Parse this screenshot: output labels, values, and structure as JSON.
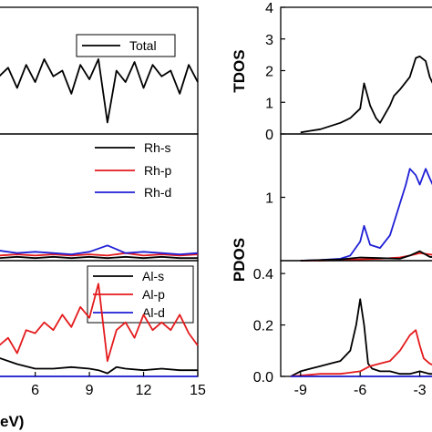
{
  "chart_data": [
    {
      "type": "line",
      "panel": "left-top",
      "xlim": [
        4,
        15
      ],
      "legend_position": "top-right",
      "series": [
        {
          "name": "Total",
          "color": "#000000",
          "x": [
            4,
            4.5,
            5,
            5.5,
            6,
            6.5,
            7,
            7.5,
            8,
            8.5,
            9,
            9.5,
            10,
            10.5,
            11,
            11.5,
            12,
            12.5,
            13,
            13.5,
            14,
            14.5,
            15
          ],
          "y": [
            1.0,
            1.15,
            0.8,
            1.2,
            0.9,
            1.3,
            1.0,
            1.1,
            0.7,
            1.2,
            0.95,
            1.3,
            0.2,
            1.1,
            0.9,
            1.25,
            0.8,
            1.2,
            1.0,
            1.1,
            0.7,
            1.2,
            0.9
          ]
        }
      ]
    },
    {
      "type": "line",
      "panel": "left-middle",
      "xlim": [
        4,
        15
      ],
      "legend_position": "top-right",
      "series": [
        {
          "name": "Rh-s",
          "color": "#000000",
          "x": [
            4,
            5,
            6,
            7,
            8,
            9,
            10,
            11,
            12,
            13,
            14,
            15
          ],
          "y": [
            0.02,
            0.03,
            0.02,
            0.03,
            0.02,
            0.03,
            0.02,
            0.03,
            0.02,
            0.03,
            0.02,
            0.02
          ]
        },
        {
          "name": "Rh-p",
          "color": "#e41a1c",
          "x": [
            4,
            5,
            6,
            7,
            8,
            9,
            10,
            11,
            12,
            13,
            14,
            15
          ],
          "y": [
            0.04,
            0.05,
            0.04,
            0.05,
            0.04,
            0.05,
            0.04,
            0.06,
            0.04,
            0.05,
            0.04,
            0.05
          ]
        },
        {
          "name": "Rh-d",
          "color": "#1f1fd6",
          "x": [
            4,
            5,
            6,
            7,
            8,
            9,
            10,
            11,
            12,
            13,
            14,
            15
          ],
          "y": [
            0.08,
            0.06,
            0.07,
            0.06,
            0.05,
            0.07,
            0.12,
            0.06,
            0.07,
            0.06,
            0.05,
            0.06
          ]
        }
      ]
    },
    {
      "type": "line",
      "panel": "left-bottom",
      "xlim": [
        4,
        15
      ],
      "xticks": [
        6,
        9,
        12,
        15
      ],
      "legend_position": "top-right",
      "series": [
        {
          "name": "Al-s",
          "color": "#000000",
          "x": [
            4,
            5,
            6,
            7,
            8,
            9,
            9.5,
            10,
            10.5,
            11,
            12,
            13,
            14,
            15
          ],
          "y": [
            0.12,
            0.08,
            0.05,
            0.05,
            0.06,
            0.05,
            0.04,
            0.02,
            0.06,
            0.05,
            0.04,
            0.05,
            0.04,
            0.04
          ]
        },
        {
          "name": "Al-p",
          "color": "#e41a1c",
          "x": [
            4,
            4.5,
            5,
            5.5,
            6,
            6.5,
            7,
            7.5,
            8,
            8.5,
            9,
            9.5,
            10,
            10.5,
            11,
            11.5,
            12,
            12.5,
            13,
            13.5,
            14,
            14.5,
            15
          ],
          "y": [
            0.2,
            0.25,
            0.15,
            0.3,
            0.28,
            0.35,
            0.3,
            0.4,
            0.32,
            0.45,
            0.38,
            0.6,
            0.1,
            0.3,
            0.35,
            0.25,
            0.4,
            0.3,
            0.35,
            0.3,
            0.4,
            0.28,
            0.2
          ]
        },
        {
          "name": "Al-d",
          "color": "#1f1fd6",
          "x": [
            4,
            15
          ],
          "y": [
            0.0,
            0.0
          ]
        }
      ]
    },
    {
      "type": "line",
      "panel": "right-top",
      "ylabel": "TDOS",
      "ylim": [
        0,
        4
      ],
      "yticks": [
        0,
        1,
        2,
        3,
        4
      ],
      "xlim": [
        -10,
        -2.2
      ],
      "series": [
        {
          "name": "",
          "color": "#000000",
          "x": [
            -9,
            -8.5,
            -8,
            -7.5,
            -7,
            -6.5,
            -6,
            -5.8,
            -5.5,
            -5.2,
            -5,
            -4.5,
            -4.3,
            -4,
            -3.5,
            -3.2,
            -3,
            -2.7,
            -2.5,
            -2.2
          ],
          "y": [
            0.05,
            0.1,
            0.15,
            0.25,
            0.35,
            0.5,
            0.8,
            1.6,
            0.9,
            0.5,
            0.35,
            0.9,
            1.2,
            1.4,
            1.8,
            2.4,
            2.45,
            2.3,
            1.8,
            1.4
          ]
        }
      ]
    },
    {
      "type": "line",
      "panel": "right-middle",
      "ylabel": "PDOS",
      "yticks": [
        1
      ],
      "xlim": [
        -10,
        -2.2
      ],
      "series": [
        {
          "name": "",
          "color": "#1f1fd6",
          "x": [
            -9,
            -8,
            -7,
            -6.5,
            -6,
            -5.8,
            -5.5,
            -5,
            -4.5,
            -4,
            -3.7,
            -3.5,
            -3.2,
            -3,
            -2.7,
            -2.5,
            -2.2
          ],
          "y": [
            0.0,
            0.01,
            0.03,
            0.08,
            0.3,
            0.55,
            0.25,
            0.2,
            0.4,
            0.9,
            1.2,
            1.45,
            1.35,
            1.2,
            1.45,
            1.3,
            1.1
          ]
        },
        {
          "name": "",
          "color": "#e41a1c",
          "x": [
            -9,
            -8,
            -7,
            -6,
            -5,
            -4,
            -3.5,
            -3,
            -2.5,
            -2.2
          ],
          "y": [
            0.0,
            0.0,
            0.01,
            0.02,
            0.03,
            0.05,
            0.08,
            0.12,
            0.1,
            0.08
          ]
        },
        {
          "name": "",
          "color": "#000000",
          "x": [
            -9,
            -8,
            -7,
            -6,
            -5,
            -4,
            -3.5,
            -3,
            -2.5,
            -2.2
          ],
          "y": [
            0.0,
            0.01,
            0.02,
            0.05,
            0.04,
            0.03,
            0.08,
            0.15,
            0.06,
            0.05
          ]
        }
      ]
    },
    {
      "type": "line",
      "panel": "right-bottom",
      "ylim": [
        0,
        0.45
      ],
      "yticks": [
        0.0,
        0.2,
        0.4
      ],
      "xlim": [
        -10,
        -2.2
      ],
      "xticks": [
        -9,
        -6,
        -3
      ],
      "series": [
        {
          "name": "",
          "color": "#000000",
          "x": [
            -9.5,
            -9,
            -8.5,
            -8,
            -7.5,
            -7,
            -6.5,
            -6.2,
            -6,
            -5.8,
            -5.6,
            -5.4,
            -5,
            -4.5,
            -4,
            -3.5,
            -3,
            -2.5,
            -2.2
          ],
          "y": [
            0.0,
            0.02,
            0.03,
            0.04,
            0.05,
            0.06,
            0.1,
            0.2,
            0.3,
            0.2,
            0.05,
            0.03,
            0.02,
            0.02,
            0.01,
            0.01,
            0.02,
            0.01,
            0.01
          ]
        },
        {
          "name": "",
          "color": "#e41a1c",
          "x": [
            -9.5,
            -8,
            -7,
            -6,
            -5.5,
            -5,
            -4.5,
            -4,
            -3.5,
            -3.2,
            -3,
            -2.8,
            -2.5,
            -2.2
          ],
          "y": [
            0.0,
            0.01,
            0.01,
            0.02,
            0.04,
            0.05,
            0.06,
            0.1,
            0.16,
            0.18,
            0.12,
            0.07,
            0.05,
            0.04
          ]
        },
        {
          "name": "",
          "color": "#1f1fd6",
          "x": [
            -9.5,
            -2.2
          ],
          "y": [
            0.0,
            0.0
          ]
        }
      ]
    }
  ],
  "left_xaxis_fragment": "eV)"
}
